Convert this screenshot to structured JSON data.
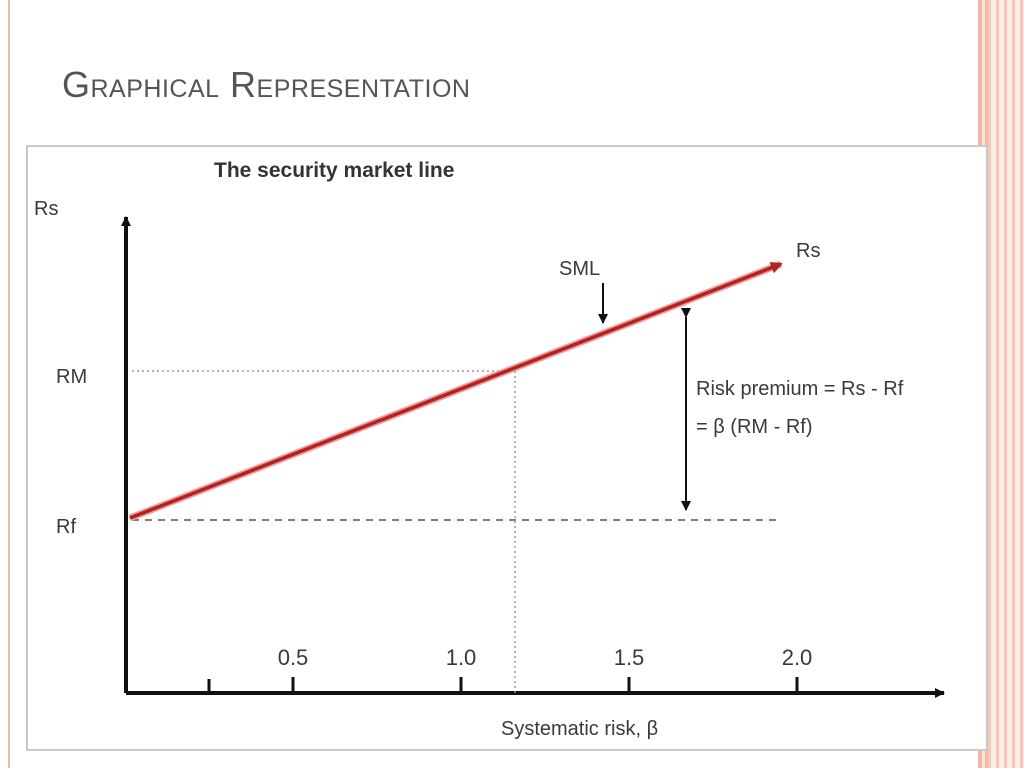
{
  "slide": {
    "title": "Graphical Representation"
  },
  "colors": {
    "accent_border": "#f1b8a6",
    "sml_line": "#b22222",
    "axis": "#111111"
  },
  "chart_data": {
    "type": "line",
    "title": "The security market line",
    "xlabel": "Systematic risk, β",
    "ylabel": "Rs",
    "x_ticks": [
      0.5,
      1.0,
      1.5,
      2.0
    ],
    "x_tick_labels": [
      "0.5",
      "1.0",
      "1.5",
      "2.0"
    ],
    "y_tick_labels": [
      "RM",
      "Rf"
    ],
    "grid": false,
    "series": [
      {
        "name": "SML",
        "x": [
          0.0,
          1.0,
          2.0
        ],
        "y": [
          "Rf",
          "RM",
          "Rs"
        ]
      }
    ],
    "line_end_label": "Rs",
    "annotations": {
      "sml_label": "SML",
      "risk_premium_line1": "Risk premium = Rs - Rf",
      "risk_premium_line2": "= β (RM - Rf)"
    }
  }
}
